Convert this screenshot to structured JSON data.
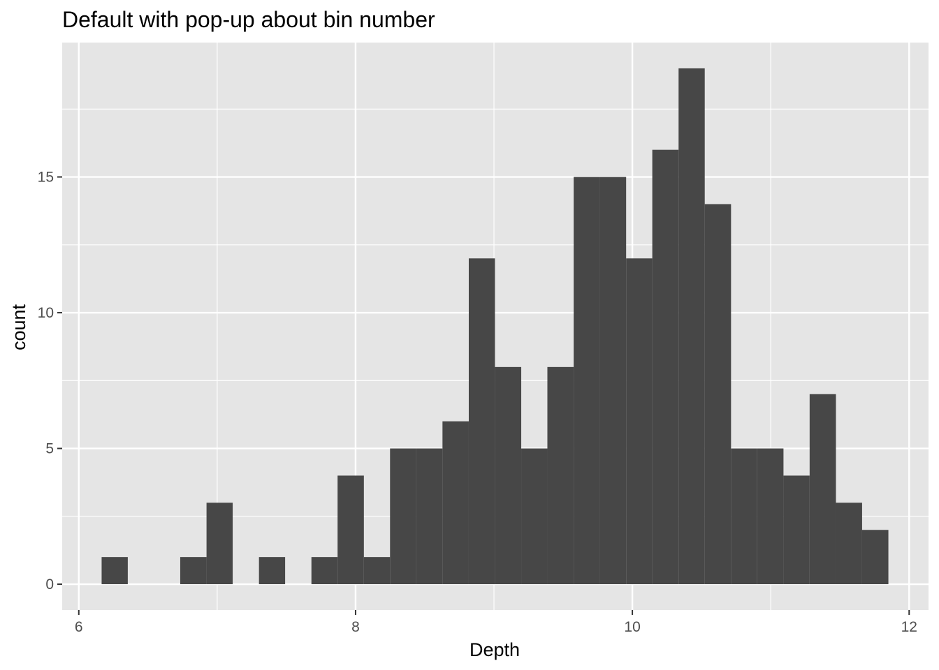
{
  "chart_data": {
    "type": "bar",
    "title": "Default with pop-up about bin number",
    "xlabel": "Depth",
    "ylabel": "count",
    "bin_width": 0.1895,
    "bins": [
      {
        "x0": 6.165,
        "x1": 6.354,
        "count": 1
      },
      {
        "x0": 6.354,
        "x1": 6.544,
        "count": 0
      },
      {
        "x0": 6.544,
        "x1": 6.733,
        "count": 0
      },
      {
        "x0": 6.733,
        "x1": 6.923,
        "count": 1
      },
      {
        "x0": 6.923,
        "x1": 7.112,
        "count": 3
      },
      {
        "x0": 7.112,
        "x1": 7.302,
        "count": 0
      },
      {
        "x0": 7.302,
        "x1": 7.491,
        "count": 1
      },
      {
        "x0": 7.491,
        "x1": 7.681,
        "count": 0
      },
      {
        "x0": 7.681,
        "x1": 7.87,
        "count": 1
      },
      {
        "x0": 7.87,
        "x1": 8.06,
        "count": 4
      },
      {
        "x0": 8.06,
        "x1": 8.249,
        "count": 1
      },
      {
        "x0": 8.249,
        "x1": 8.439,
        "count": 5
      },
      {
        "x0": 8.439,
        "x1": 8.628,
        "count": 5
      },
      {
        "x0": 8.628,
        "x1": 8.818,
        "count": 6
      },
      {
        "x0": 8.818,
        "x1": 9.007,
        "count": 12
      },
      {
        "x0": 9.007,
        "x1": 9.197,
        "count": 8
      },
      {
        "x0": 9.197,
        "x1": 9.386,
        "count": 5
      },
      {
        "x0": 9.386,
        "x1": 9.576,
        "count": 8
      },
      {
        "x0": 9.576,
        "x1": 9.765,
        "count": 15
      },
      {
        "x0": 9.765,
        "x1": 9.955,
        "count": 15
      },
      {
        "x0": 9.955,
        "x1": 10.144,
        "count": 12
      },
      {
        "x0": 10.144,
        "x1": 10.334,
        "count": 16
      },
      {
        "x0": 10.334,
        "x1": 10.523,
        "count": 19
      },
      {
        "x0": 10.523,
        "x1": 10.713,
        "count": 14
      },
      {
        "x0": 10.713,
        "x1": 10.902,
        "count": 5
      },
      {
        "x0": 10.902,
        "x1": 11.092,
        "count": 5
      },
      {
        "x0": 11.092,
        "x1": 11.281,
        "count": 4
      },
      {
        "x0": 11.281,
        "x1": 11.471,
        "count": 7
      },
      {
        "x0": 11.471,
        "x1": 11.66,
        "count": 3
      },
      {
        "x0": 11.66,
        "x1": 11.85,
        "count": 2
      }
    ],
    "xlim": [
      5.88,
      12.14
    ],
    "ylim": [
      -0.95,
      19.95
    ],
    "x_ticks": [
      6,
      8,
      10,
      12
    ],
    "x_tick_labels": [
      "6",
      "8",
      "10",
      "12"
    ],
    "x_minor_ticks": [
      7,
      9,
      11
    ],
    "y_ticks": [
      0,
      5,
      10,
      15
    ],
    "y_tick_labels": [
      "0",
      "5",
      "10",
      "15"
    ],
    "y_minor_ticks": [
      2.5,
      7.5,
      12.5,
      17.5
    ],
    "grid": true,
    "panel_color": "#e5e5e5",
    "bar_color": "#474747",
    "grid_color": "#ffffff"
  }
}
